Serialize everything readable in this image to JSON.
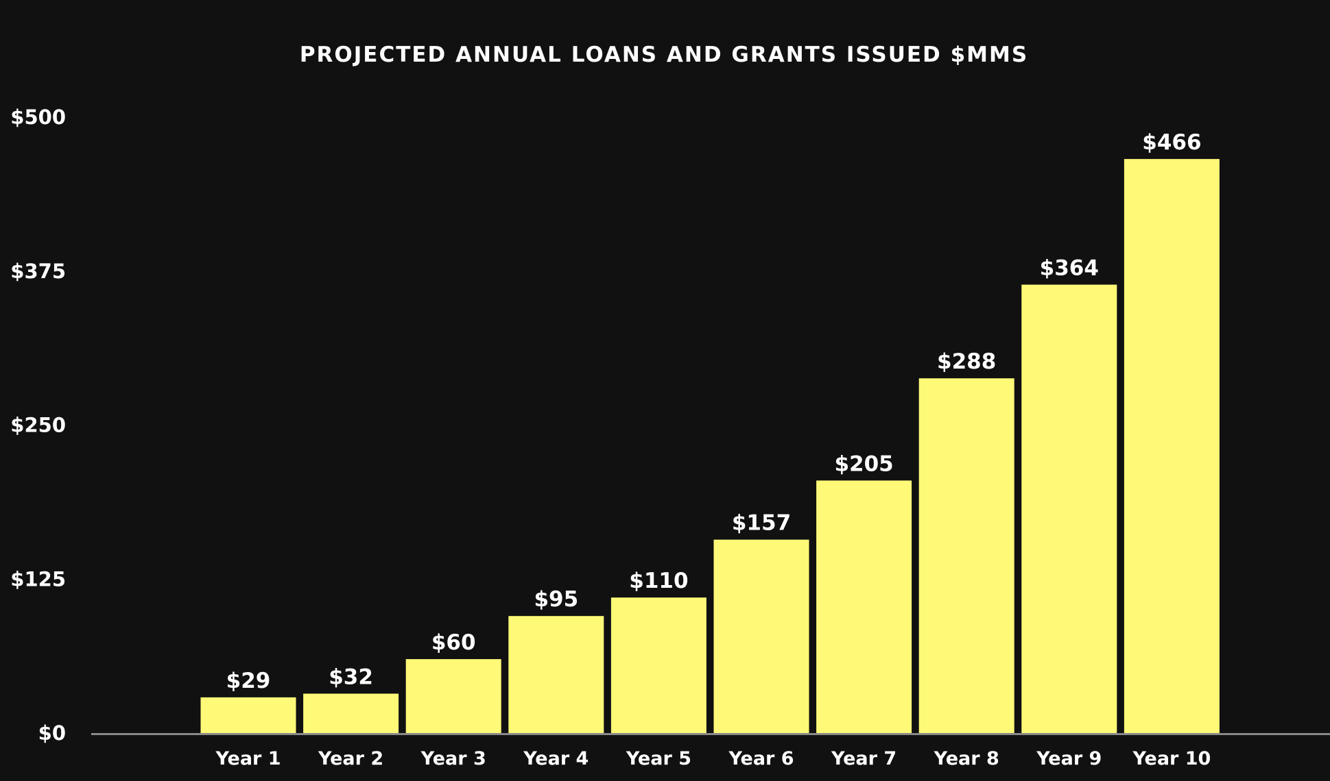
{
  "chart_data": {
    "type": "bar",
    "title": "PROJECTED ANNUAL LOANS AND GRANTS ISSUED  $MMS",
    "xlabel": "",
    "ylabel": "",
    "categories": [
      "Year 1",
      "Year 2",
      "Year 3",
      "Year 4",
      "Year 5",
      "Year 6",
      "Year 7",
      "Year 8",
      "Year 9",
      "Year 10"
    ],
    "values": [
      29,
      32,
      60,
      95,
      110,
      157,
      205,
      288,
      364,
      466
    ],
    "value_labels": [
      "$29",
      "$32",
      "$60",
      "$95",
      "$110",
      "$157",
      "$205",
      "$288",
      "$364",
      "$466"
    ],
    "y_ticks": [
      0,
      125,
      250,
      375,
      500
    ],
    "y_tick_labels": [
      "$0",
      "$125",
      "$250",
      "$375",
      "$500"
    ],
    "ylim": [
      0,
      500
    ],
    "grid": false,
    "legend": "none",
    "colors": {
      "background": "#111111",
      "bar": "#FFF978",
      "text": "#FFFFFF",
      "axis": "#8A8A8A"
    }
  }
}
